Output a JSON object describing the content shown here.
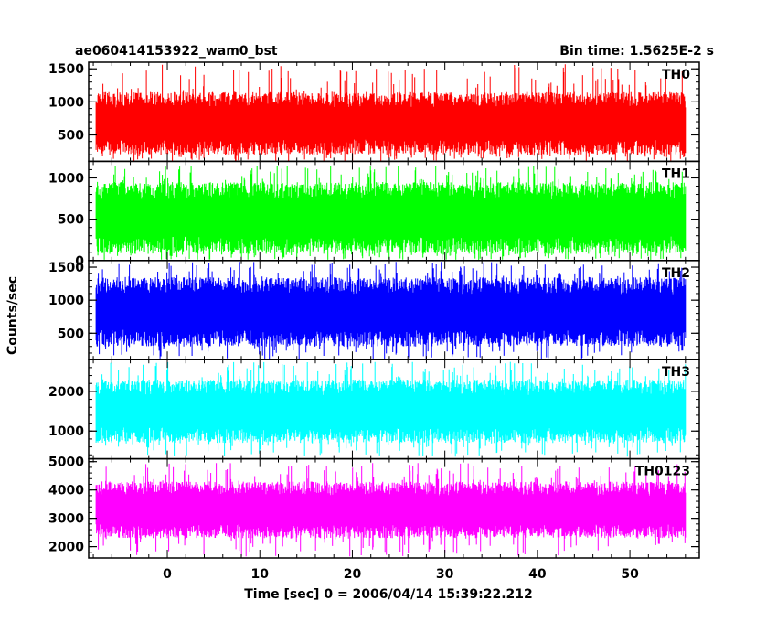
{
  "chart_data": {
    "type": "line",
    "title": "ae060414153922_wam0_bst",
    "subtitle": "Bin time: 1.5625E-2 s",
    "xlabel": "Time [sec] 0 = 2006/04/14 15:39:22.212",
    "ylabel": "Counts/sec",
    "xlim": [
      -8.5,
      57.5
    ],
    "data_range": [
      -7.7,
      56.0
    ],
    "x_ticks": [
      0,
      10,
      20,
      30,
      40,
      50
    ],
    "x_tick_labels": [
      "0",
      "10",
      "20",
      "30",
      "40",
      "50"
    ],
    "grid": false,
    "panels": [
      {
        "name": "TH0",
        "color": "#ff0000",
        "ylim": [
          100,
          1600
        ],
        "y_ticks": [
          500,
          1000,
          1500
        ],
        "y_tick_labels": [
          "500",
          "1000",
          "1500"
        ],
        "y_range_typical": [
          200,
          1150
        ],
        "y_range_extreme": [
          100,
          1580
        ]
      },
      {
        "name": "TH1",
        "color": "#00ff00",
        "ylim": [
          0,
          1200
        ],
        "y_ticks": [
          0,
          500,
          1000
        ],
        "y_tick_labels": [
          "0",
          "500",
          "1000"
        ],
        "y_range_typical": [
          80,
          950
        ],
        "y_range_extreme": [
          5,
          1150
        ]
      },
      {
        "name": "TH2",
        "color": "#0000ff",
        "ylim": [
          100,
          1600
        ],
        "y_ticks": [
          500,
          1000,
          1500
        ],
        "y_tick_labels": [
          "500",
          "1000",
          "1500"
        ],
        "y_range_typical": [
          300,
          1350
        ],
        "y_range_extreme": [
          100,
          1580
        ]
      },
      {
        "name": "TH3",
        "color": "#00ffff",
        "ylim": [
          300,
          2800
        ],
        "y_ticks": [
          1000,
          2000
        ],
        "y_tick_labels": [
          "1000",
          "2000"
        ],
        "y_range_typical": [
          700,
          2300
        ],
        "y_range_extreme": [
          350,
          2750
        ]
      },
      {
        "name": "TH0123",
        "color": "#ff00ff",
        "ylim": [
          1600,
          5100
        ],
        "y_ticks": [
          2000,
          3000,
          4000,
          5000
        ],
        "y_tick_labels": [
          "2000",
          "3000",
          "4000",
          "5000"
        ],
        "y_range_typical": [
          2300,
          4300
        ],
        "y_range_extreme": [
          1650,
          4950
        ]
      }
    ]
  }
}
